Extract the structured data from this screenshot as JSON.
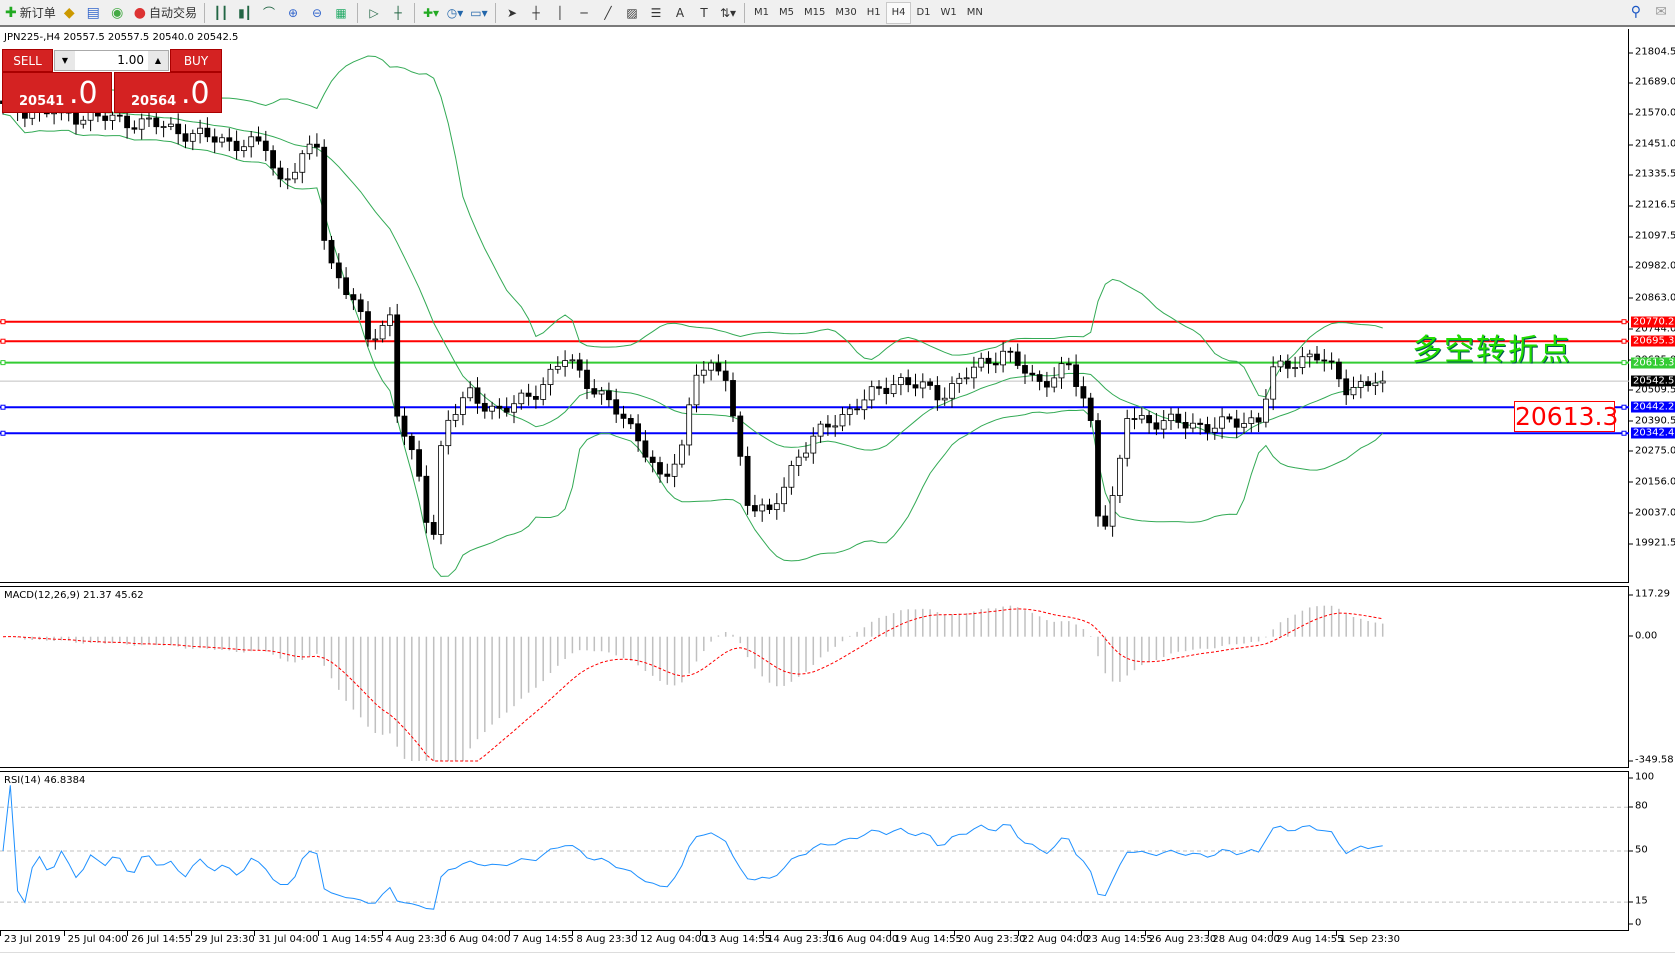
{
  "toolbar": {
    "new_order": "新订单",
    "auto_trading": "自动交易",
    "timeframes": [
      "M1",
      "M5",
      "M15",
      "M30",
      "H1",
      "H4",
      "D1",
      "W1",
      "MN"
    ],
    "active_timeframe": "H4"
  },
  "chart": {
    "header": "JPN225-,H4  20557.5 20557.5 20540.0 20542.5",
    "symbol": "JPN225-",
    "timeframe": "H4",
    "trade_panel": {
      "sell_label": "SELL",
      "buy_label": "BUY",
      "lot": "1.00",
      "sell_price_main": "20541",
      "sell_price_big": ".0",
      "buy_price_main": "20564",
      "buy_price_big": ".0"
    },
    "annotation": "多空转折点",
    "price_box": "20613.3",
    "price_axis": [
      "21804.5",
      "21689.0",
      "21570.0",
      "21451.0",
      "21335.5",
      "21216.5",
      "21097.5",
      "20982.0",
      "20863.0",
      "20744.0",
      "20625.0",
      "20509.5",
      "20390.5",
      "20275.0",
      "20156.0",
      "20037.0",
      "19921.5"
    ],
    "price_range": [
      19921.5,
      21804.5
    ],
    "levels": [
      {
        "price": "20770.2",
        "color": "#ff0000"
      },
      {
        "price": "20695.3",
        "color": "#ff0000"
      },
      {
        "price": "20613.3",
        "color": "#33cc33"
      },
      {
        "price": "20542.5",
        "color": "#000000"
      },
      {
        "price": "20442.2",
        "color": "#0000ff"
      },
      {
        "price": "20342.4",
        "color": "#0000ff"
      }
    ],
    "close_path_approx": [
      [
        0,
        21594
      ],
      [
        150,
        21530
      ],
      [
        213,
        21470
      ],
      [
        267,
        21440
      ],
      [
        278,
        21300
      ],
      [
        320,
        21460
      ],
      [
        325,
        21030
      ],
      [
        352,
        20860
      ],
      [
        368,
        20700
      ],
      [
        390,
        20790
      ],
      [
        395,
        20450
      ],
      [
        422,
        20125
      ],
      [
        432,
        19900
      ],
      [
        443,
        20370
      ],
      [
        470,
        20490
      ],
      [
        502,
        20420
      ],
      [
        534,
        20500
      ],
      [
        566,
        20630
      ],
      [
        598,
        20500
      ],
      [
        641,
        20320
      ],
      [
        662,
        20140
      ],
      [
        684,
        20300
      ],
      [
        694,
        20600
      ],
      [
        726,
        20560
      ],
      [
        748,
        20080
      ],
      [
        769,
        20020
      ],
      [
        796,
        20250
      ],
      [
        833,
        20390
      ],
      [
        865,
        20470
      ],
      [
        897,
        20550
      ],
      [
        940,
        20490
      ],
      [
        972,
        20580
      ],
      [
        1004,
        20660
      ],
      [
        1036,
        20530
      ],
      [
        1068,
        20600
      ],
      [
        1090,
        20410
      ],
      [
        1100,
        19960
      ],
      [
        1116,
        20120
      ],
      [
        1127,
        20405
      ],
      [
        1175,
        20380
      ],
      [
        1218,
        20370
      ],
      [
        1260,
        20400
      ],
      [
        1271,
        20570
      ],
      [
        1314,
        20654
      ],
      [
        1346,
        20520
      ],
      [
        1380,
        20542
      ]
    ],
    "bollinger_color": "#33aa55",
    "up_color": "#ffffff",
    "down_color": "#000000"
  },
  "macd": {
    "label": "MACD(12,26,9) 21.37 45.62",
    "axis": [
      "117.29",
      "0.00",
      "-349.58"
    ],
    "range": [
      -349.58,
      117.29
    ],
    "signal_color": "#ff0000",
    "hist_color": "#c0c0c0"
  },
  "rsi": {
    "label": "RSI(14) 46.8384",
    "axis": [
      "100",
      "80",
      "50",
      "15",
      "0"
    ],
    "line_color": "#1e90ff"
  },
  "time_axis": [
    "23 Jul 2019",
    "25 Jul 04:00",
    "26 Jul 14:55",
    "29 Jul 23:30",
    "31 Jul 04:00",
    "1 Aug 14:55",
    "4 Aug 23:30",
    "6 Aug 04:00",
    "7 Aug 14:55",
    "8 Aug 23:30",
    "12 Aug 04:00",
    "13 Aug 14:55",
    "14 Aug 23:30",
    "16 Aug 04:00",
    "19 Aug 14:55",
    "20 Aug 23:30",
    "22 Aug 04:00",
    "23 Aug 14:55",
    "26 Aug 23:30",
    "28 Aug 04:00",
    "29 Aug 14:55",
    "1 Sep 23:30"
  ]
}
